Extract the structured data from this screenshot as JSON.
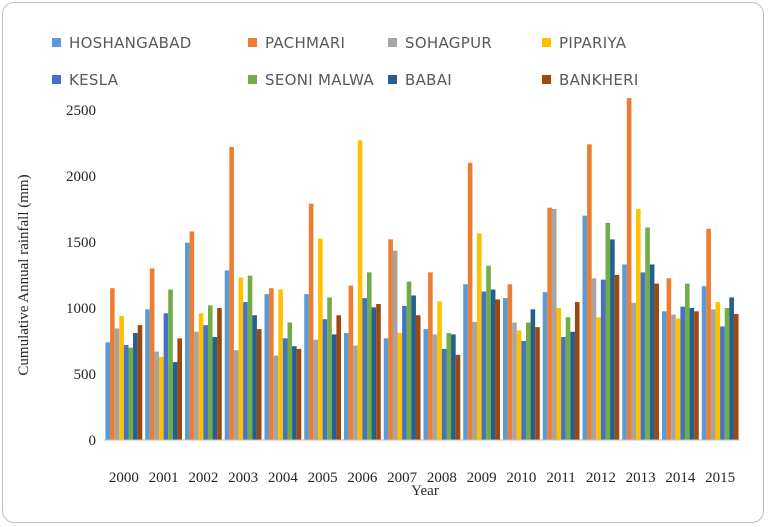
{
  "chart_data": {
    "type": "bar",
    "title": "",
    "xlabel": "Year",
    "ylabel": "Cumulative Annual rainfall (mm)",
    "ylim": [
      0,
      2500
    ],
    "yticks": [
      0,
      500,
      1000,
      1500,
      2000,
      2500
    ],
    "grid": false,
    "legend_position": "top",
    "categories": [
      "2000",
      "2001",
      "2002",
      "2003",
      "2004",
      "2005",
      "2006",
      "2007",
      "2008",
      "2009",
      "2010",
      "2011",
      "2012",
      "2013",
      "2014",
      "2015"
    ],
    "series": [
      {
        "name": "HOSHANGABAD",
        "color": "#5b9bd5",
        "values": [
          740,
          990,
          1495,
          1285,
          1105,
          1105,
          810,
          770,
          840,
          1180,
          1075,
          1120,
          1700,
          1330,
          975,
          1165
        ]
      },
      {
        "name": "PACHMARI",
        "color": "#ed7d31",
        "values": [
          1150,
          1300,
          1580,
          2220,
          1150,
          1790,
          1170,
          1520,
          1270,
          2100,
          1180,
          1760,
          2240,
          2590,
          1225,
          1600
        ]
      },
      {
        "name": "SOHAGPUR",
        "color": "#a5a5a5",
        "values": [
          845,
          670,
          820,
          680,
          640,
          760,
          715,
          1435,
          800,
          895,
          890,
          1750,
          1225,
          1040,
          950,
          990
        ]
      },
      {
        "name": "PIPARIYA",
        "color": "#ffc000",
        "values": [
          940,
          630,
          960,
          1230,
          1140,
          1525,
          2270,
          810,
          1050,
          1565,
          830,
          1000,
          930,
          1750,
          920,
          1045
        ]
      },
      {
        "name": "KESLA",
        "color": "#4472c4",
        "values": [
          720,
          960,
          870,
          1045,
          770,
          915,
          1075,
          1015,
          690,
          1125,
          750,
          780,
          1215,
          1270,
          1010,
          860
        ]
      },
      {
        "name": "SEONI MALWA",
        "color": "#70ad47",
        "values": [
          700,
          1140,
          1020,
          1245,
          890,
          1080,
          1270,
          1200,
          810,
          1320,
          890,
          930,
          1645,
          1610,
          1185,
          1000
        ]
      },
      {
        "name": "BABAI",
        "color": "#255e91",
        "values": [
          810,
          590,
          780,
          945,
          710,
          800,
          1005,
          1095,
          800,
          1140,
          990,
          820,
          1520,
          1330,
          1000,
          1080
        ]
      },
      {
        "name": "BANKHERI",
        "color": "#9e480e",
        "values": [
          870,
          770,
          1000,
          840,
          690,
          945,
          1030,
          945,
          645,
          1065,
          855,
          1045,
          1250,
          1185,
          975,
          955
        ]
      }
    ]
  }
}
